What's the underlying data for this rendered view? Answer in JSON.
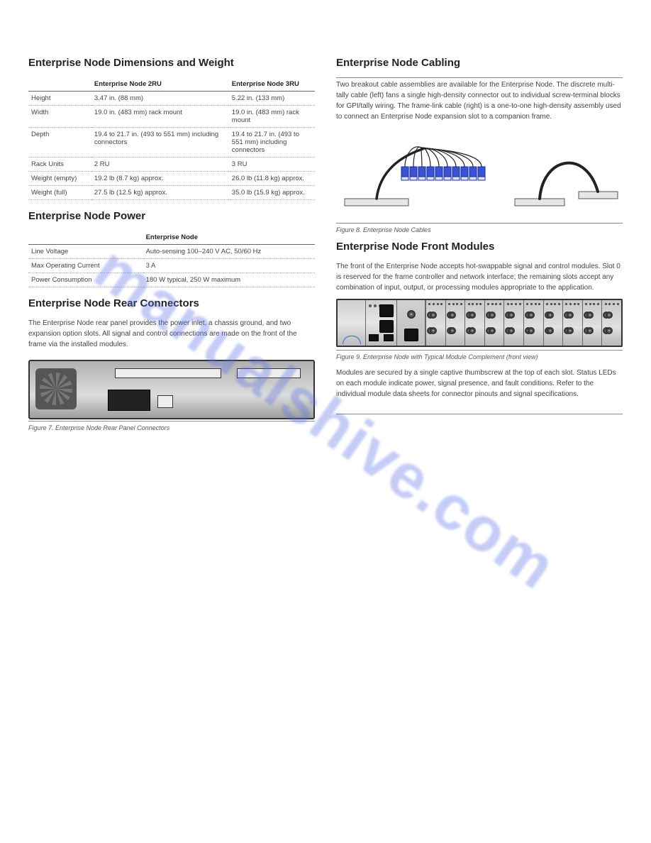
{
  "watermark": "manualshive.com",
  "left": {
    "title": "Enterprise Node Dimensions and Weight",
    "table1": {
      "headers": [
        "",
        "Enterprise Node 2RU",
        "Enterprise Node 3RU"
      ],
      "rows": [
        [
          "Height",
          "3.47 in. (88 mm)",
          "5.22 in. (133 mm)"
        ],
        [
          "Width",
          "19.0 in. (483 mm) rack mount",
          "19.0 in. (483 mm) rack mount"
        ],
        [
          "Depth",
          "19.4 to 21.7 in. (493 to 551 mm) including connectors",
          "19.4 to 21.7 in. (493 to 551 mm) including connectors"
        ],
        [
          "Rack Units",
          "2 RU",
          "3 RU"
        ],
        [
          "Weight (empty)",
          "19.2 lb (8.7 kg) approx.",
          "26.0 lb (11.8 kg) approx."
        ],
        [
          "Weight (full)",
          "27.5 lb (12.5 kg) approx.",
          "35.0 lb (15.9 kg) approx."
        ]
      ]
    },
    "title2": "Enterprise Node Power",
    "table2": {
      "headers": [
        "",
        "Enterprise Node"
      ],
      "rows": [
        [
          "Line Voltage",
          "Auto-sensing 100–240 V AC, 50/60 Hz"
        ],
        [
          "Max Operating Current",
          "3 A"
        ],
        [
          "Power Consumption",
          "180 W typical, 250 W maximum"
        ]
      ]
    },
    "title3": "Enterprise Node Rear Connectors",
    "para3": "The Enterprise Node rear panel provides the power inlet, a chassis ground, and two expansion option slots. All signal and control connections are made on the front of the frame via the installed modules.",
    "fig1_caption": "Figure 7.  Enterprise Node Rear Panel Connectors"
  },
  "right": {
    "title": "Enterprise Node Cabling",
    "para1": "Two breakout cable assemblies are available for the Enterprise Node. The discrete multi-tally cable (left) fans a single high-density connector out to individual screw-terminal blocks for GPI/tally wiring. The frame-link cable (right) is a one-to-one high-density assembly used to connect an Enterprise Node expansion slot to a companion frame.",
    "fig2_caption": "Figure 8.  Enterprise Node Cables",
    "cables_svg": {
      "terminal_fill": "#3a52d6",
      "terminal_stroke": "#1b2e8f",
      "cable_color": "#222222",
      "connector_fill": "#e6e6e6",
      "connector_stroke": "#555555"
    },
    "title2": "Enterprise Node Front Modules",
    "para2": "The front of the Enterprise Node accepts hot-swappable signal and control modules. Slot 0 is reserved for the frame controller and network interface; the remaining slots accept any combination of input, output, or processing modules appropriate to the application.",
    "fig3_caption": "Figure 9.  Enterprise Node with Typical Module Complement (front view)",
    "para3": "Modules are secured by a single captive thumbscrew at the top of each slot. Status LEDs on each module indicate power, signal presence, and fault conditions. Refer to the individual module data sheets for connector pinouts and signal specifications.",
    "front": {
      "module_count": 10,
      "bnc_per_module": 4
    }
  },
  "colors": {
    "text": "#333333",
    "muted": "#555555",
    "rule": "#888888",
    "panel_dark": "#333333",
    "watermark": "rgba(90,110,230,0.35)"
  }
}
